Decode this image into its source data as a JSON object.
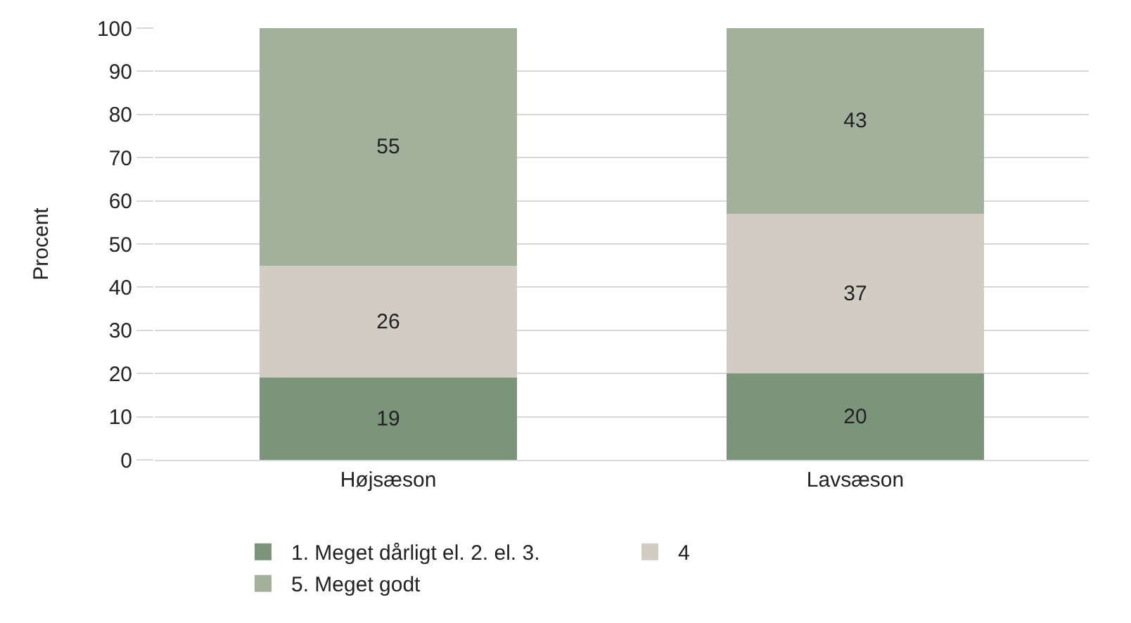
{
  "chart_data": {
    "type": "bar",
    "stacked": true,
    "ylabel": "Procent",
    "categories": [
      "Højsæson",
      "Lavsæson"
    ],
    "series": [
      {
        "name": "1. Meget dårligt el. 2. el. 3.",
        "color": "#7a957a",
        "values": [
          19,
          20
        ]
      },
      {
        "name": "4",
        "color": "#d1cdc3",
        "values": [
          26,
          37
        ]
      },
      {
        "name": "5. Meget godt",
        "color": "#a2b19c",
        "values": [
          55,
          43
        ]
      }
    ],
    "ylim": [
      0,
      100
    ],
    "yticks": [
      0,
      10,
      20,
      30,
      40,
      50,
      60,
      70,
      80,
      90,
      100
    ],
    "grid": "y",
    "legend": "bottom",
    "data_labels": true
  }
}
